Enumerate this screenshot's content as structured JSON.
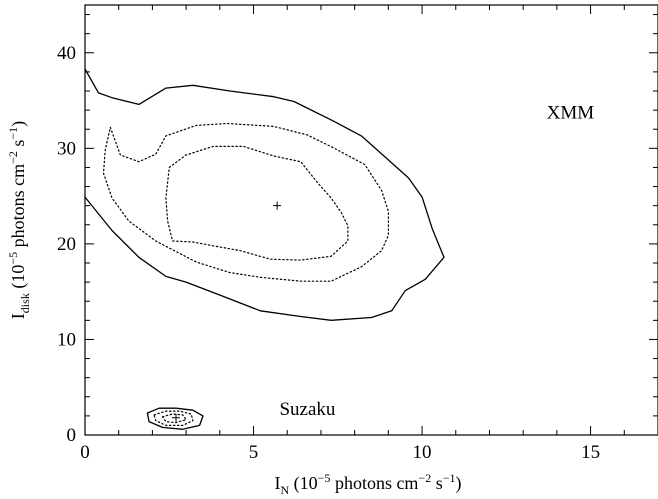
{
  "chart_data": {
    "type": "contour",
    "xlim": [
      0,
      17
    ],
    "ylim": [
      0,
      45
    ],
    "x_ticks": [
      0,
      5,
      10,
      15
    ],
    "y_ticks": [
      0,
      10,
      20,
      30,
      40
    ],
    "x_tick_labels": [
      "0",
      "5",
      "10",
      "15"
    ],
    "y_tick_labels": [
      "0",
      "10",
      "20",
      "30",
      "40"
    ],
    "xlabel": {
      "main": "I",
      "sub": "N",
      "rest_a": " (10",
      "exp1": "−5",
      "rest_b": " photons cm",
      "exp2": "−2",
      "rest_c": " s",
      "exp3": "−1",
      "rest_d": ")"
    },
    "ylabel": {
      "main": "I",
      "sub": "disk",
      "rest_a": " (10",
      "exp1": "−5",
      "rest_b": " photons cm",
      "exp2": "−2",
      "rest_c": " s",
      "exp3": "−1",
      "rest_d": ")"
    },
    "annotations": [
      {
        "text": "XMM",
        "x": 14.4,
        "y": 33
      },
      {
        "text": "Suzaku",
        "x": 6.6,
        "y": 2.0
      }
    ],
    "grid": false,
    "series": [
      {
        "group": "XMM",
        "level": "outer",
        "style": "solid",
        "points": [
          [
            0,
            38.3
          ],
          [
            0.4,
            35.8
          ],
          [
            0.8,
            35.3
          ],
          [
            1.6,
            34.6
          ],
          [
            2.4,
            36.3
          ],
          [
            3.2,
            36.6
          ],
          [
            4.3,
            36
          ],
          [
            5.6,
            35.4
          ],
          [
            6.2,
            34.9
          ],
          [
            7.4,
            32.8
          ],
          [
            8.2,
            31.3
          ],
          [
            8.9,
            29.1
          ],
          [
            9.6,
            26.9
          ],
          [
            10.0,
            24.9
          ],
          [
            10.3,
            21.6
          ],
          [
            10.65,
            18.6
          ],
          [
            10.1,
            16.3
          ],
          [
            9.5,
            15.1
          ],
          [
            9.1,
            13.0
          ],
          [
            8.5,
            12.3
          ],
          [
            7.3,
            12.0
          ],
          [
            6.4,
            12.4
          ],
          [
            5.2,
            13.0
          ],
          [
            4.1,
            14.5
          ],
          [
            3.0,
            16.0
          ],
          [
            2.4,
            16.6
          ],
          [
            1.6,
            18.6
          ],
          [
            0.8,
            21.4
          ],
          [
            0,
            24.9
          ]
        ]
      },
      {
        "group": "XMM",
        "level": "middle",
        "style": "dotted",
        "points": [
          [
            0.75,
            32.2
          ],
          [
            1.05,
            29.3
          ],
          [
            1.6,
            28.6
          ],
          [
            2.1,
            29.4
          ],
          [
            2.4,
            31.3
          ],
          [
            3.3,
            32.4
          ],
          [
            4.2,
            32.6
          ],
          [
            5.6,
            32.3
          ],
          [
            6.6,
            31.4
          ],
          [
            7.4,
            30.0
          ],
          [
            8.3,
            28.3
          ],
          [
            8.8,
            25.6
          ],
          [
            9.0,
            23.4
          ],
          [
            9.0,
            20.9
          ],
          [
            8.8,
            19.3
          ],
          [
            8.2,
            17.6
          ],
          [
            7.3,
            16.1
          ],
          [
            6.4,
            16.1
          ],
          [
            5.2,
            16.5
          ],
          [
            4.3,
            17.0
          ],
          [
            3.3,
            18.1
          ],
          [
            2.1,
            20.3
          ],
          [
            1.3,
            22.4
          ],
          [
            0.8,
            24.8
          ],
          [
            0.55,
            27.4
          ],
          [
            0.6,
            29.8
          ],
          [
            0.75,
            32.2
          ]
        ]
      },
      {
        "group": "XMM",
        "level": "inner",
        "style": "dotted",
        "points": [
          [
            2.5,
            28.0
          ],
          [
            3.0,
            29.3
          ],
          [
            3.8,
            30.2
          ],
          [
            4.7,
            30.2
          ],
          [
            5.6,
            29.2
          ],
          [
            6.4,
            28.6
          ],
          [
            6.9,
            26.4
          ],
          [
            7.3,
            24.8
          ],
          [
            7.6,
            23.3
          ],
          [
            7.8,
            21.9
          ],
          [
            7.8,
            20.3
          ],
          [
            7.3,
            18.7
          ],
          [
            6.4,
            18.3
          ],
          [
            5.5,
            18.4
          ],
          [
            4.6,
            19.3
          ],
          [
            3.8,
            19.8
          ],
          [
            3.2,
            20.2
          ],
          [
            2.6,
            20.3
          ],
          [
            2.45,
            22.4
          ],
          [
            2.4,
            24.8
          ],
          [
            2.5,
            28.0
          ]
        ]
      },
      {
        "group": "Suzaku",
        "level": "outer",
        "style": "solid",
        "points": [
          [
            1.85,
            2.3
          ],
          [
            2.2,
            2.8
          ],
          [
            2.7,
            2.8
          ],
          [
            3.2,
            2.6
          ],
          [
            3.5,
            2.0
          ],
          [
            3.4,
            1.0
          ],
          [
            2.9,
            0.6
          ],
          [
            2.3,
            0.8
          ],
          [
            1.9,
            1.4
          ],
          [
            1.85,
            2.3
          ]
        ]
      },
      {
        "group": "Suzaku",
        "level": "middle",
        "style": "dotted",
        "points": [
          [
            2.05,
            2.1
          ],
          [
            2.4,
            2.5
          ],
          [
            2.8,
            2.5
          ],
          [
            3.15,
            2.2
          ],
          [
            3.2,
            1.5
          ],
          [
            2.9,
            1.0
          ],
          [
            2.4,
            1.0
          ],
          [
            2.1,
            1.5
          ],
          [
            2.05,
            2.1
          ]
        ]
      },
      {
        "group": "Suzaku",
        "level": "inner",
        "style": "dotted",
        "points": [
          [
            2.3,
            1.9
          ],
          [
            2.6,
            2.2
          ],
          [
            2.9,
            2.1
          ],
          [
            3.0,
            1.6
          ],
          [
            2.7,
            1.3
          ],
          [
            2.4,
            1.4
          ],
          [
            2.3,
            1.9
          ]
        ]
      }
    ],
    "best_fit": [
      {
        "group": "XMM",
        "x": 5.7,
        "y": 24.0
      },
      {
        "group": "Suzaku",
        "x": 2.7,
        "y": 1.8
      }
    ]
  }
}
